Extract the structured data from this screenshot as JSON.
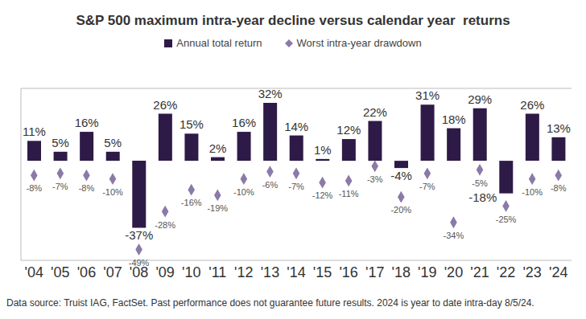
{
  "chart_data": {
    "type": "bar",
    "title": "S&P 500 maximum intra-year decline versus calendar year  returns",
    "footnote": "Data source: Truist IAG, FactSet. Past performance does not guarantee future results. 2024 is year to date intra-day 8/5/24.",
    "categories": [
      "'04",
      "'05",
      "'06",
      "'07",
      "'08",
      "'09",
      "'10",
      "'11",
      "'12",
      "'13",
      "'14",
      "'15",
      "'16",
      "'17",
      "'18",
      "'19",
      "'20",
      "'21",
      "'22",
      "'23",
      "'24"
    ],
    "series": [
      {
        "name": "Annual total return",
        "type": "bar",
        "color": "#2e1a47",
        "values": [
          11,
          5,
          16,
          5,
          -37,
          26,
          15,
          2,
          16,
          32,
          14,
          1,
          12,
          22,
          -4,
          31,
          18,
          29,
          -18,
          26,
          13
        ],
        "value_labels": [
          "11%",
          "5%",
          "16%",
          "5%",
          "-37%",
          "26%",
          "15%",
          "2%",
          "16%",
          "32%",
          "14%",
          "1%",
          "12%",
          "22%",
          "-4%",
          "31%",
          "18%",
          "29%",
          "-18%",
          "26%",
          "13%"
        ]
      },
      {
        "name": "Worst intra-year drawdown",
        "type": "scatter",
        "marker": "diamond",
        "color": "#8b7aa8",
        "values": [
          -8,
          -7,
          -8,
          -10,
          -49,
          -28,
          -16,
          -19,
          -10,
          -6,
          -7,
          -12,
          -11,
          -3,
          -20,
          -7,
          -34,
          -5,
          -25,
          -10,
          -8
        ],
        "value_labels": [
          "-8%",
          "-7%",
          "-8%",
          "-10%",
          "-49%",
          "-28%",
          "-16%",
          "-19%",
          "-10%",
          "-6%",
          "-7%",
          "-12%",
          "-11%",
          "-3%",
          "-20%",
          "-7%",
          "-34%",
          "-5%",
          "-25%",
          "-10%",
          "-8%"
        ]
      }
    ],
    "ylim": [
      -55,
      40
    ],
    "yticks": [
      0
    ],
    "grid": true,
    "legend": "top",
    "data_labels": true,
    "tick_labels": "x"
  }
}
